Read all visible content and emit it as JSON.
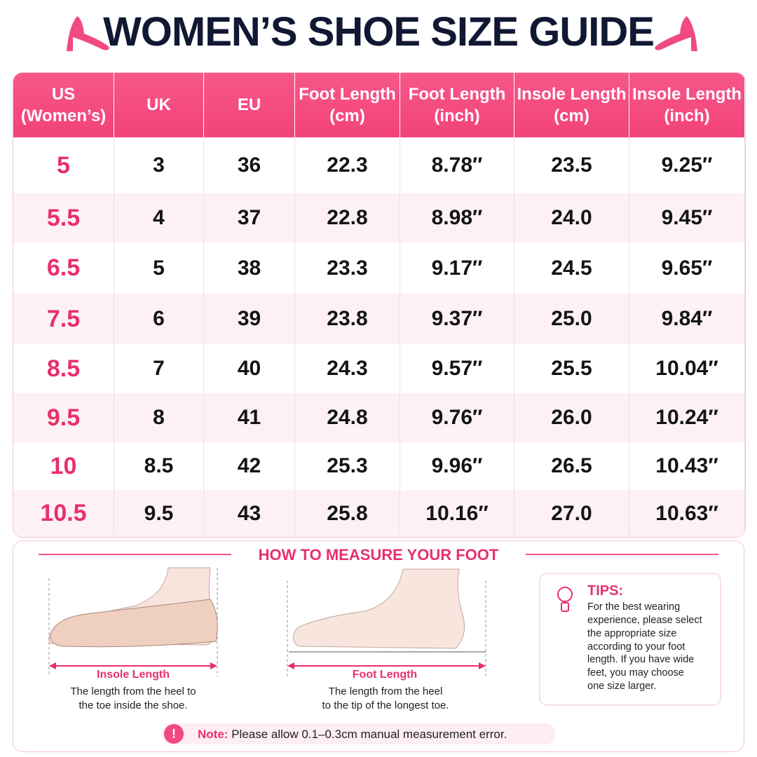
{
  "header": {
    "title": "WOMEN’S SHOE SIZE GUIDE"
  },
  "table": {
    "columns": [
      "US\n(Women’s)",
      "UK",
      "EU",
      "Foot Length\n(cm)",
      "Foot Length\n(inch)",
      "Insole Length\n(cm)",
      "Insole Length\n(inch)"
    ],
    "rows": [
      [
        "5",
        "3",
        "36",
        "22.3",
        "8.78″",
        "23.5",
        "9.25″"
      ],
      [
        "5.5",
        "4",
        "37",
        "22.8",
        "8.98″",
        "24.0",
        "9.45″"
      ],
      [
        "6.5",
        "5",
        "38",
        "23.3",
        "9.17″",
        "24.5",
        "9.65″"
      ],
      [
        "7.5",
        "6",
        "39",
        "23.8",
        "9.37″",
        "25.0",
        "9.84″"
      ],
      [
        "8.5",
        "7",
        "40",
        "24.3",
        "9.57″",
        "25.5",
        "10.04″"
      ],
      [
        "9.5",
        "8",
        "41",
        "24.8",
        "9.76″",
        "26.0",
        "10.24″"
      ],
      [
        "10",
        "8.5",
        "42",
        "25.3",
        "9.96″",
        "26.5",
        "10.43″"
      ],
      [
        "10.5",
        "9.5",
        "43",
        "25.8",
        "10.16″",
        "27.0",
        "10.63″"
      ]
    ]
  },
  "measure": {
    "title": "HOW TO MEASURE YOUR FOOT",
    "insole": {
      "label": "Insole Length",
      "description": "The length from the heel to\nthe toe inside the shoe."
    },
    "foot": {
      "label": "Foot Length",
      "description": "The length from the heel\nto the tip of the longest toe."
    }
  },
  "tips": {
    "title": "TIPS:",
    "text": "For the best wearing\nexperience, please select\nthe appropriate size\naccording to your foot\nlength. If you have wide\nfeet, you may choose\none size larger."
  },
  "note": {
    "label": "Note:",
    "text": "Please allow 0.1–0.3cm manual measurement error."
  }
}
